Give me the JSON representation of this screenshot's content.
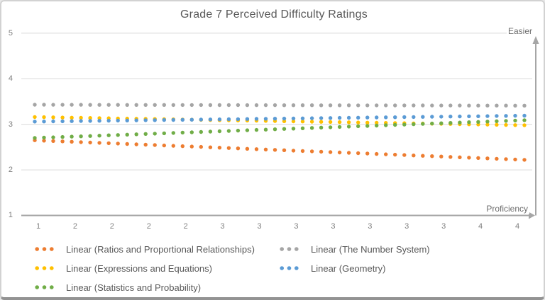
{
  "chart_data": {
    "type": "scatter",
    "subtype": "dotted-linear-trendlines",
    "title": "Grade 7 Perceived Difficulty Ratings",
    "x_axis_annotation": "Proficiency",
    "y_axis_annotation": "Easier",
    "x_tick_labels": [
      "1",
      "2",
      "2",
      "2",
      "2",
      "3",
      "3",
      "3",
      "3",
      "3",
      "3",
      "3",
      "4",
      "4"
    ],
    "y_tick_labels": [
      "1",
      "2",
      "3",
      "4",
      "5"
    ],
    "ylim": [
      1,
      5
    ],
    "grid": "horizontal",
    "legend_position": "bottom",
    "axis_color": "#a6a6a6",
    "gridline_color": "#d9d9d9",
    "text_color": "#595959",
    "series": [
      {
        "key": "ratios-and-proportional-relationships",
        "name": "Linear (Ratios and Proportional Relationships)",
        "color": "#ED7D31",
        "trend": {
          "start": 2.65,
          "end": 2.22
        }
      },
      {
        "key": "the-number-system",
        "name": "Linear (The Number System)",
        "color": "#A5A5A5",
        "trend": {
          "start": 3.43,
          "end": 3.41
        }
      },
      {
        "key": "expressions-and-equations",
        "name": "Linear (Expressions and Equations)",
        "color": "#FFC000",
        "trend": {
          "start": 3.16,
          "end": 2.98
        }
      },
      {
        "key": "geometry",
        "name": "Linear (Geometry)",
        "color": "#5B9BD5",
        "trend": {
          "start": 3.06,
          "end": 3.19
        }
      },
      {
        "key": "statistics-and-probability",
        "name": "Linear (Statistics and Probability)",
        "color": "#70AD47",
        "trend": {
          "start": 2.7,
          "end": 3.09
        }
      }
    ]
  }
}
